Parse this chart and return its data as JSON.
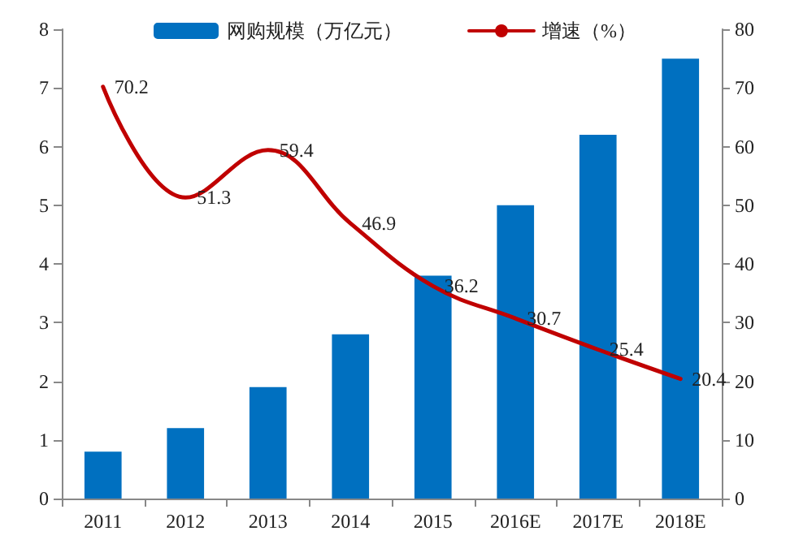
{
  "chart_data": {
    "type": "bar",
    "categories": [
      "2011",
      "2012",
      "2013",
      "2014",
      "2015",
      "2016E",
      "2017E",
      "2018E"
    ],
    "series": [
      {
        "name": "网购规模（万亿元）",
        "color": "#0070c0",
        "values": [
          0.8,
          1.2,
          1.9,
          2.8,
          3.8,
          5.0,
          6.2,
          7.5
        ]
      },
      {
        "name": "增速（%）",
        "type": "line",
        "axis": "y2",
        "color": "#c00000",
        "values": [
          70.2,
          51.3,
          59.4,
          46.9,
          36.2,
          30.7,
          25.4,
          20.4
        ],
        "value_labels": [
          "70.2",
          "51.3",
          "59.4",
          "46.9",
          "36.2",
          "30.7",
          "25.4",
          "20.4"
        ]
      }
    ],
    "ylim": [
      0,
      8
    ],
    "yticks": [
      0,
      1,
      2,
      3,
      4,
      5,
      6,
      7,
      8
    ],
    "y2lim": [
      0,
      80
    ],
    "y2ticks": [
      0,
      10,
      20,
      30,
      40,
      50,
      60,
      70,
      80
    ],
    "legend": "top",
    "grid": false,
    "marker": "none",
    "line_style": "solid"
  }
}
